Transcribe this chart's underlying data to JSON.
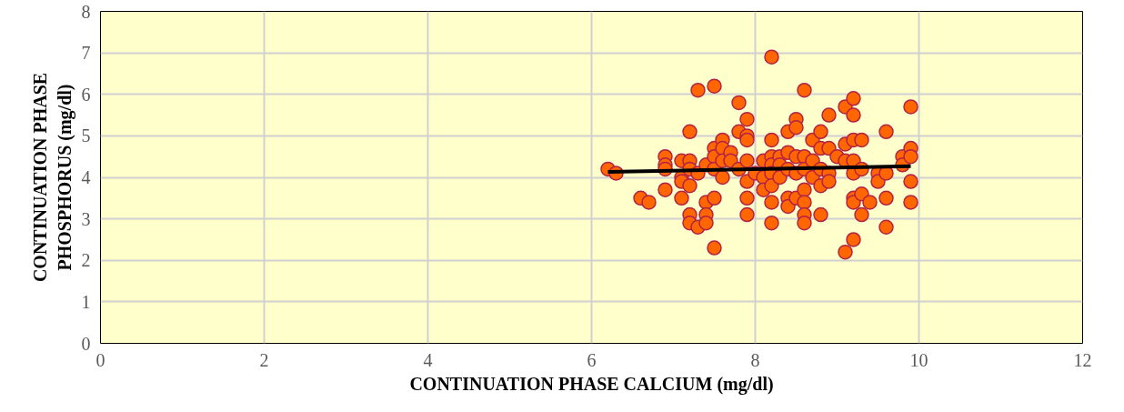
{
  "chart_data": {
    "type": "scatter",
    "xlabel": "CONTINUATION PHASE CALCIUM (mg/dl)",
    "ylabel": "CONTINUATION PHASE\nPHOSPHORUS (mg/dl)",
    "xlim": [
      0,
      12
    ],
    "ylim": [
      0,
      8
    ],
    "xticks": [
      0,
      2,
      4,
      6,
      8,
      10,
      12
    ],
    "yticks": [
      0,
      1,
      2,
      3,
      4,
      5,
      6,
      7,
      8
    ],
    "grid": true,
    "series": [
      {
        "color": "#ff6600",
        "marker": "circle",
        "x": [
          6.2,
          6.3,
          6.6,
          6.7,
          6.9,
          6.9,
          6.9,
          6.9,
          7.1,
          7.1,
          7.1,
          7.1,
          7.2,
          7.2,
          7.2,
          7.2,
          7.2,
          7.2,
          7.3,
          7.3,
          7.3,
          7.4,
          7.4,
          7.4,
          7.4,
          7.5,
          7.5,
          7.5,
          7.5,
          7.5,
          7.5,
          7.6,
          7.6,
          7.6,
          7.6,
          7.7,
          7.7,
          7.8,
          7.8,
          7.8,
          7.9,
          7.9,
          7.9,
          7.9,
          7.9,
          7.9,
          7.9,
          8.0,
          8.1,
          8.1,
          8.1,
          8.2,
          8.2,
          8.2,
          8.2,
          8.2,
          8.2,
          8.2,
          8.2,
          8.3,
          8.3,
          8.3,
          8.4,
          8.4,
          8.4,
          8.4,
          8.4,
          8.5,
          8.5,
          8.5,
          8.5,
          8.5,
          8.6,
          8.6,
          8.6,
          8.6,
          8.6,
          8.6,
          8.6,
          8.7,
          8.7,
          8.7,
          8.8,
          8.8,
          8.8,
          8.8,
          8.8,
          8.9,
          8.9,
          8.9,
          8.9,
          9.0,
          9.1,
          9.1,
          9.1,
          9.1,
          9.2,
          9.2,
          9.2,
          9.2,
          9.2,
          9.2,
          9.2,
          9.2,
          9.3,
          9.3,
          9.3,
          9.3,
          9.4,
          9.5,
          9.5,
          9.6,
          9.6,
          9.6,
          9.6,
          9.8,
          9.8,
          9.9,
          9.9,
          9.9,
          9.9,
          9.9
        ],
        "values": [
          4.2,
          4.1,
          3.5,
          3.4,
          4.5,
          4.3,
          4.2,
          3.7,
          4.4,
          4.0,
          3.9,
          3.5,
          5.1,
          4.4,
          4.2,
          3.8,
          3.1,
          2.9,
          6.1,
          4.1,
          2.8,
          4.3,
          3.4,
          3.1,
          2.9,
          6.2,
          4.7,
          4.5,
          4.2,
          3.5,
          2.3,
          4.9,
          4.7,
          4.4,
          4.0,
          4.6,
          4.4,
          5.8,
          5.1,
          4.2,
          5.4,
          5.0,
          4.9,
          4.4,
          3.9,
          3.5,
          3.1,
          4.1,
          4.4,
          4.0,
          3.7,
          6.9,
          4.9,
          4.5,
          4.3,
          4.1,
          3.8,
          3.4,
          2.9,
          4.5,
          4.3,
          4.0,
          5.1,
          4.6,
          4.2,
          3.5,
          3.3,
          5.4,
          5.2,
          4.5,
          4.1,
          3.5,
          6.1,
          4.5,
          4.2,
          3.7,
          3.4,
          3.1,
          2.9,
          4.9,
          4.4,
          4.0,
          5.1,
          4.7,
          4.2,
          3.8,
          3.1,
          5.5,
          4.7,
          4.1,
          3.9,
          4.5,
          5.7,
          4.8,
          4.4,
          2.2,
          5.9,
          5.5,
          4.9,
          4.4,
          4.1,
          3.5,
          3.4,
          2.5,
          4.9,
          4.2,
          3.6,
          3.1,
          3.4,
          4.1,
          3.9,
          5.1,
          4.1,
          3.5,
          2.8,
          4.5,
          4.3,
          5.7,
          4.7,
          4.5,
          3.9,
          3.4
        ]
      },
      {
        "type": "line",
        "color": "#000000",
        "x": [
          6.2,
          9.9
        ],
        "values": [
          4.13,
          4.27
        ],
        "line_style": "solid",
        "marker": "none"
      }
    ]
  }
}
